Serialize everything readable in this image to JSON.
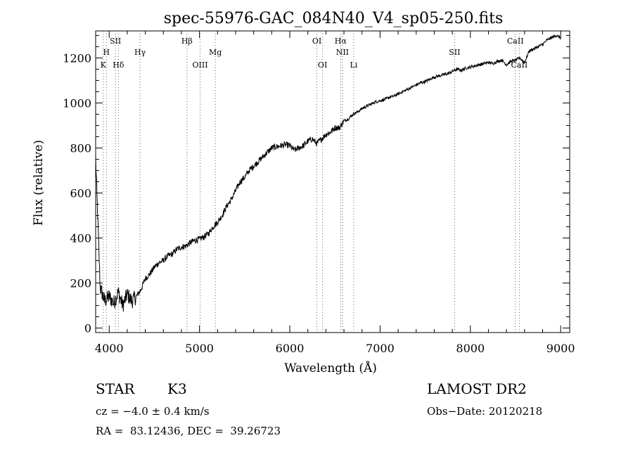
{
  "chart_data": {
    "type": "line",
    "title": "spec-55976-GAC_084N40_V4_sp05-250.fits",
    "xlabel": "Wavelength (Å)",
    "ylabel": "Flux (relative)",
    "xlim": [
      3850,
      9100
    ],
    "ylim": [
      -20,
      1320
    ],
    "xticks": [
      "4000",
      "5000",
      "6000",
      "7000",
      "8000",
      "9000"
    ],
    "yticks": [
      "0",
      "200",
      "400",
      "600",
      "800",
      "1000",
      "1200"
    ],
    "series": [
      {
        "x": [
          3850,
          3900,
          3950,
          4000,
          4050,
          4100,
          4150,
          4200,
          4250,
          4300,
          4350,
          4400,
          4450,
          4500,
          4550,
          4600,
          4650,
          4700,
          4750,
          4800,
          4850,
          4900,
          4950,
          5000,
          5050,
          5100,
          5150,
          5200,
          5250,
          5300,
          5350,
          5400,
          5450,
          5500,
          5550,
          5600,
          5650,
          5700,
          5750,
          5800,
          5850,
          5900,
          5950,
          6000,
          6050,
          6100,
          6150,
          6200,
          6250,
          6300,
          6350,
          6400,
          6450,
          6500,
          6550,
          6600,
          6650,
          6700,
          6750,
          6800,
          6850,
          6900,
          6950,
          7000,
          7050,
          7100,
          7150,
          7200,
          7250,
          7300,
          7350,
          7400,
          7450,
          7500,
          7550,
          7600,
          7650,
          7700,
          7750,
          7800,
          7850,
          7900,
          7950,
          8000,
          8050,
          8100,
          8150,
          8200,
          8250,
          8300,
          8350,
          8400,
          8450,
          8500,
          8550,
          8600,
          8650,
          8700,
          8750,
          8800,
          8850,
          8900,
          8950,
          9000
        ],
        "y": [
          750,
          180,
          120,
          140,
          110,
          160,
          100,
          150,
          120,
          140,
          170,
          220,
          240,
          270,
          290,
          300,
          320,
          330,
          350,
          360,
          365,
          380,
          390,
          395,
          405,
          420,
          450,
          470,
          500,
          540,
          570,
          610,
          650,
          670,
          700,
          720,
          740,
          760,
          780,
          800,
          805,
          810,
          815,
          810,
          790,
          800,
          810,
          830,
          840,
          820,
          840,
          860,
          870,
          890,
          890,
          920,
          930,
          950,
          960,
          975,
          985,
          995,
          1005,
          1010,
          1015,
          1025,
          1030,
          1040,
          1050,
          1060,
          1070,
          1080,
          1090,
          1095,
          1105,
          1115,
          1120,
          1125,
          1130,
          1140,
          1150,
          1145,
          1155,
          1160,
          1165,
          1170,
          1175,
          1180,
          1175,
          1185,
          1190,
          1170,
          1185,
          1190,
          1200,
          1180,
          1230,
          1240,
          1250,
          1260,
          1280,
          1290,
          1300,
          1290
        ]
      }
    ],
    "spectral_lines": [
      {
        "label": "K",
        "x": 3934,
        "row": 3
      },
      {
        "label": "H",
        "x": 3969,
        "row": 2
      },
      {
        "label": "SII",
        "x": 4069,
        "row": 1
      },
      {
        "label": "Hδ",
        "x": 4102,
        "row": 3
      },
      {
        "label": "Hγ",
        "x": 4341,
        "row": 2
      },
      {
        "label": "Hβ",
        "x": 4861,
        "row": 1
      },
      {
        "label": "OIII",
        "x": 5007,
        "row": 3
      },
      {
        "label": "Mg",
        "x": 5175,
        "row": 2
      },
      {
        "label": "OI",
        "x": 6300,
        "row": 1
      },
      {
        "label": "OI",
        "x": 6363,
        "row": 3
      },
      {
        "label": "Hα",
        "x": 6563,
        "row": 1
      },
      {
        "label": "NII",
        "x": 6583,
        "row": 2
      },
      {
        "label": "Li",
        "x": 6708,
        "row": 3
      },
      {
        "label": "SII",
        "x": 7825,
        "row": 2
      },
      {
        "label": "CaII",
        "x": 8498,
        "row": 1
      },
      {
        "label": "CaII",
        "x": 8542,
        "row": 3
      }
    ]
  },
  "info": {
    "object_class": "STAR",
    "subclass": "K3",
    "survey": "LAMOST DR2",
    "cz": "cz = −4.0 ± 0.4 km/s",
    "obs_date": "Obs−Date: 20120218",
    "coords": "RA =  83.12436, DEC =  39.26723"
  }
}
